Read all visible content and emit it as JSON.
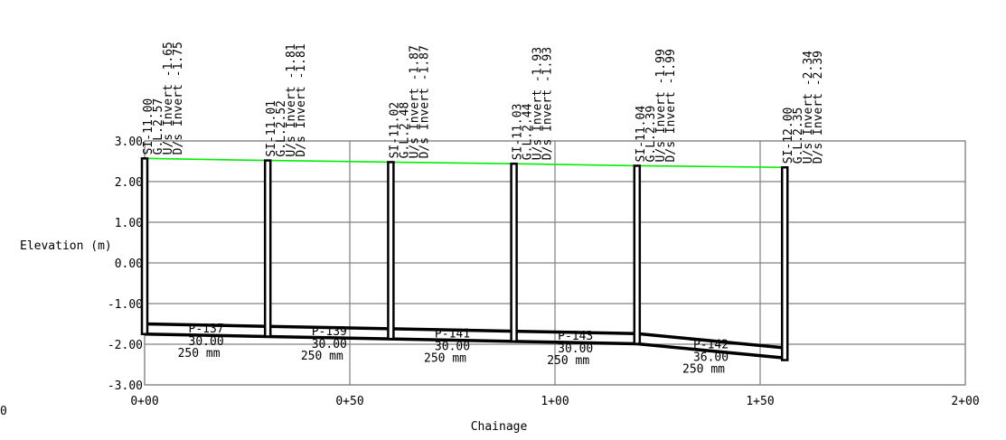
{
  "chart_data": {
    "type": "line",
    "title": "",
    "xlabel": "Chainage",
    "ylabel": "Elevation (m)",
    "xlim": [
      0,
      200
    ],
    "ylim": [
      -3.0,
      3.0
    ],
    "x_ticks": [
      0,
      50,
      100,
      150,
      200
    ],
    "x_tick_labels": [
      "0+00",
      "0+50",
      "1+00",
      "1+50",
      "2+00"
    ],
    "y_ticks": [
      3,
      2,
      1,
      0,
      -1,
      -2,
      -3
    ],
    "y_tick_labels": [
      "3.00",
      "2.00",
      "1.00",
      "0.00",
      "-1.00",
      "-2.00",
      "-3.00"
    ],
    "left_edge_label": "0",
    "grid": true,
    "colors": {
      "ground": "#00ee00",
      "structure": "#000000",
      "grid": "#808080"
    },
    "ground_line": {
      "x": [
        0,
        30,
        60,
        90,
        120,
        156
      ],
      "y": [
        2.57,
        2.52,
        2.48,
        2.44,
        2.39,
        2.35
      ]
    },
    "manholes": [
      {
        "chainage": 0,
        "gl": 2.57,
        "invert": -1.75,
        "labels": [
          "SI-11.00",
          "G.L.2.57",
          "U/s Invert -1.65",
          "D/s Invert -1.75"
        ]
      },
      {
        "chainage": 30,
        "gl": 2.52,
        "invert": -1.81,
        "labels": [
          "SI-11.01",
          "G.L.2.52",
          "U/s Invert -1.81",
          "D/s Invert -1.81"
        ]
      },
      {
        "chainage": 60,
        "gl": 2.48,
        "invert": -1.87,
        "labels": [
          "SI-11.02",
          "G.L.2.48",
          "U/s Invert -1.87",
          "D/s Invert -1.87"
        ]
      },
      {
        "chainage": 90,
        "gl": 2.44,
        "invert": -1.93,
        "labels": [
          "SI-11.03",
          "G.L.2.44",
          "U/s Invert -1.93",
          "D/s Invert -1.93"
        ]
      },
      {
        "chainage": 120,
        "gl": 2.39,
        "invert": -1.99,
        "labels": [
          "SI-11.04",
          "G.L.2.39",
          "U/s Invert -1.99",
          "D/s Invert -1.99"
        ]
      },
      {
        "chainage": 156,
        "gl": 2.35,
        "invert": -2.39,
        "labels": [
          "SI-12.00",
          "G.L.2.35",
          "U/s Invert -2.34",
          "D/s Invert -2.39"
        ]
      }
    ],
    "pipes": [
      {
        "id": "P-137",
        "from": 0,
        "to": 30,
        "us_invert": -1.75,
        "ds_invert": -1.81,
        "length": "30.00",
        "size": "250 mm"
      },
      {
        "id": "P-139",
        "from": 30,
        "to": 60,
        "us_invert": -1.81,
        "ds_invert": -1.87,
        "length": "30.00",
        "size": "250 mm"
      },
      {
        "id": "P-141",
        "from": 60,
        "to": 90,
        "us_invert": -1.87,
        "ds_invert": -1.93,
        "length": "30.00",
        "size": "250 mm"
      },
      {
        "id": "P-143",
        "from": 90,
        "to": 120,
        "us_invert": -1.93,
        "ds_invert": -1.99,
        "length": "30.00",
        "size": "250 mm"
      },
      {
        "id": "P-142",
        "from": 120,
        "to": 156,
        "us_invert": -1.99,
        "ds_invert": -2.34,
        "length": "36.00",
        "size": "250 mm"
      }
    ]
  }
}
